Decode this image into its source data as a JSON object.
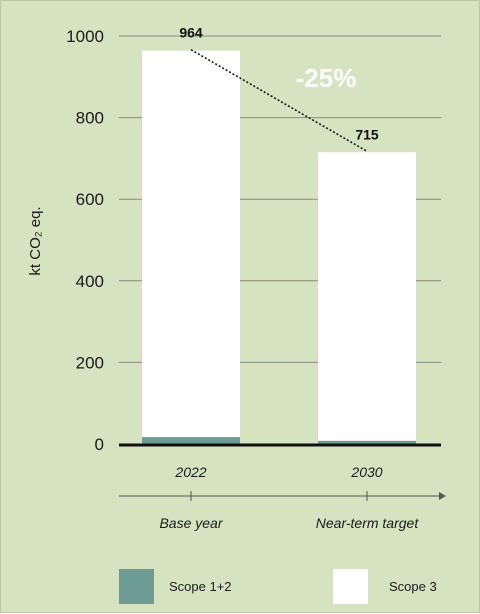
{
  "chart_data": {
    "type": "bar",
    "stacked": true,
    "categories": [
      "2022",
      "2030"
    ],
    "category_descriptions": [
      "Base year",
      "Near-term target"
    ],
    "series": [
      {
        "name": "Scope 1+2",
        "values": [
          17,
          8
        ],
        "color": "#6f9b95"
      },
      {
        "name": "Scope 3",
        "values": [
          947,
          707
        ],
        "color": "#ffffff"
      }
    ],
    "totals": [
      "964",
      "715"
    ],
    "annotation": "-25%",
    "ylabel": "kt CO₂ eq.",
    "yticks": [
      0,
      200,
      400,
      600,
      800,
      1000
    ],
    "ylim": [
      0,
      1000
    ],
    "grid": true,
    "legend_position": "bottom",
    "background_color": "#d6e3c0"
  }
}
